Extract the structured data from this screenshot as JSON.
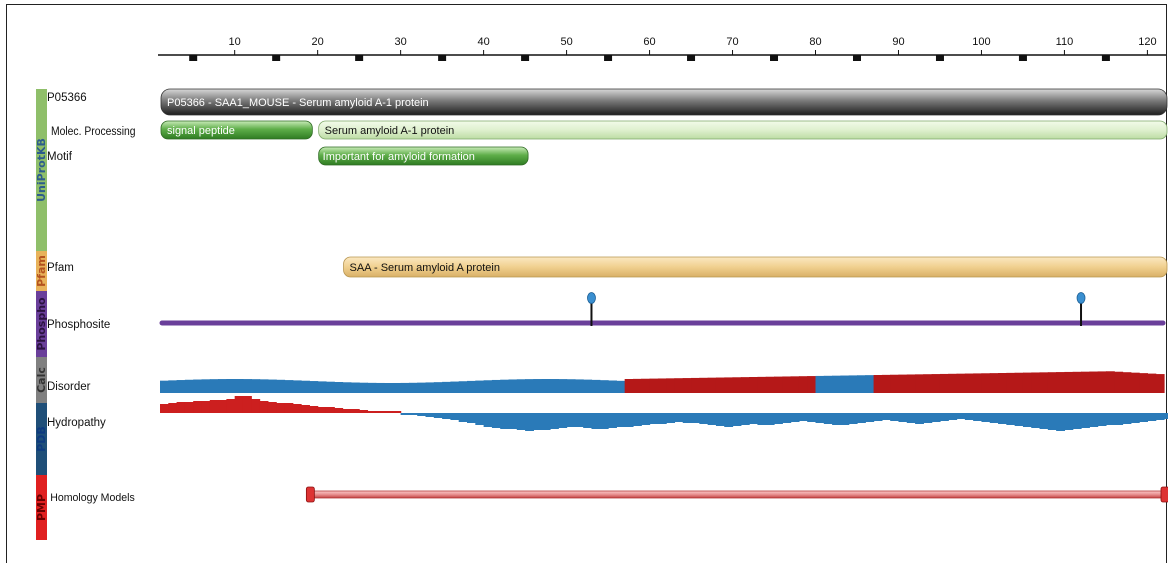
{
  "ruler": {
    "max": 122,
    "labels": [
      10,
      20,
      30,
      40,
      50,
      60,
      70,
      80,
      90,
      100,
      110,
      120
    ]
  },
  "groups": [
    {
      "name": "UniProtKB",
      "color": "#8fbf6a",
      "text_color": "#2d5d8c",
      "from_row": 0,
      "to_row": 2
    },
    {
      "name": "Pfam",
      "color": "#e8b25a",
      "text_color": "#b4521e",
      "from_row": 3,
      "to_row": 3
    },
    {
      "name": "Phospho",
      "color": "#6a3f9a",
      "text_color": "#2b1240",
      "from_row": 4,
      "to_row": 4
    },
    {
      "name": "Calc",
      "color": "#808080",
      "text_color": "#333333",
      "from_row": 5,
      "to_row": 5
    },
    {
      "name": "PDB",
      "color": "#1f4f78",
      "text_color": "#0d3a80",
      "from_row": 6,
      "to_row": 6
    },
    {
      "name": "PMP",
      "color": "#e02020",
      "text_color": "#6a0000",
      "from_row": 7,
      "to_row": 7
    }
  ],
  "rows": {
    "protein": "P05366",
    "molec": "Molec. Processing",
    "motif": "Motif",
    "pfam": "Pfam",
    "phospho": "Phosphosite",
    "disorder": "Disorder",
    "hydropathy": "Hydropathy",
    "homology": "Homology Models"
  },
  "features": {
    "protein": {
      "label": "P05366 - SAA1_MOUSE - Serum amyloid A-1 protein",
      "start": 1,
      "end": 122,
      "color": "gray"
    },
    "signal_peptide": {
      "label": "signal peptide",
      "start": 1,
      "end": 19,
      "color": "green"
    },
    "chain": {
      "label": "Serum amyloid A-1 protein",
      "start": 20,
      "end": 122,
      "color": "lightgreen"
    },
    "motif": {
      "label": "Important for amyloid formation",
      "start": 20,
      "end": 45,
      "color": "green"
    },
    "pfam": {
      "label": "SAA - Serum amyloid A protein",
      "start": 23,
      "end": 122,
      "color": "tan"
    },
    "phosphosites": [
      53,
      112
    ],
    "homology_model": {
      "start": 19,
      "end": 122
    }
  },
  "disorder": {
    "segments": [
      {
        "start": 1,
        "end": 57,
        "state": "ordered"
      },
      {
        "start": 57,
        "end": 80,
        "state": "disordered"
      },
      {
        "start": 80,
        "end": 87,
        "state": "ordered"
      },
      {
        "start": 87,
        "end": 122,
        "state": "disordered"
      }
    ],
    "ordered_color": "#2a7ab8",
    "disordered_color": "#b51818"
  },
  "hydropathy": {
    "values": [
      0.45,
      0.5,
      0.55,
      0.55,
      0.6,
      0.6,
      0.65,
      0.65,
      0.7,
      0.85,
      0.85,
      0.7,
      0.6,
      0.55,
      0.5,
      0.5,
      0.45,
      0.4,
      0.35,
      0.3,
      0.3,
      0.25,
      0.2,
      0.2,
      0.15,
      0.1,
      0.05,
      0.05,
      0.0,
      -0.05,
      -0.1,
      -0.15,
      -0.2,
      -0.25,
      -0.3,
      -0.35,
      -0.45,
      -0.5,
      -0.6,
      -0.7,
      -0.75,
      -0.8,
      -0.8,
      -0.85,
      -0.9,
      -0.85,
      -0.85,
      -0.8,
      -0.75,
      -0.7,
      -0.7,
      -0.75,
      -0.8,
      -0.8,
      -0.75,
      -0.7,
      -0.7,
      -0.65,
      -0.6,
      -0.55,
      -0.55,
      -0.5,
      -0.45,
      -0.5,
      -0.5,
      -0.55,
      -0.6,
      -0.65,
      -0.7,
      -0.65,
      -0.6,
      -0.55,
      -0.6,
      -0.6,
      -0.55,
      -0.5,
      -0.45,
      -0.4,
      -0.45,
      -0.5,
      -0.55,
      -0.6,
      -0.6,
      -0.55,
      -0.5,
      -0.45,
      -0.4,
      -0.35,
      -0.4,
      -0.45,
      -0.5,
      -0.55,
      -0.5,
      -0.45,
      -0.4,
      -0.35,
      -0.3,
      -0.35,
      -0.4,
      -0.45,
      -0.5,
      -0.55,
      -0.6,
      -0.65,
      -0.7,
      -0.75,
      -0.8,
      -0.85,
      -0.9,
      -0.85,
      -0.8,
      -0.75,
      -0.7,
      -0.65,
      -0.6,
      -0.6,
      -0.55,
      -0.5,
      -0.45,
      -0.4,
      -0.35,
      -0.3
    ],
    "positive_color": "#cc1f1f",
    "negative_color": "#2a7ab8"
  }
}
